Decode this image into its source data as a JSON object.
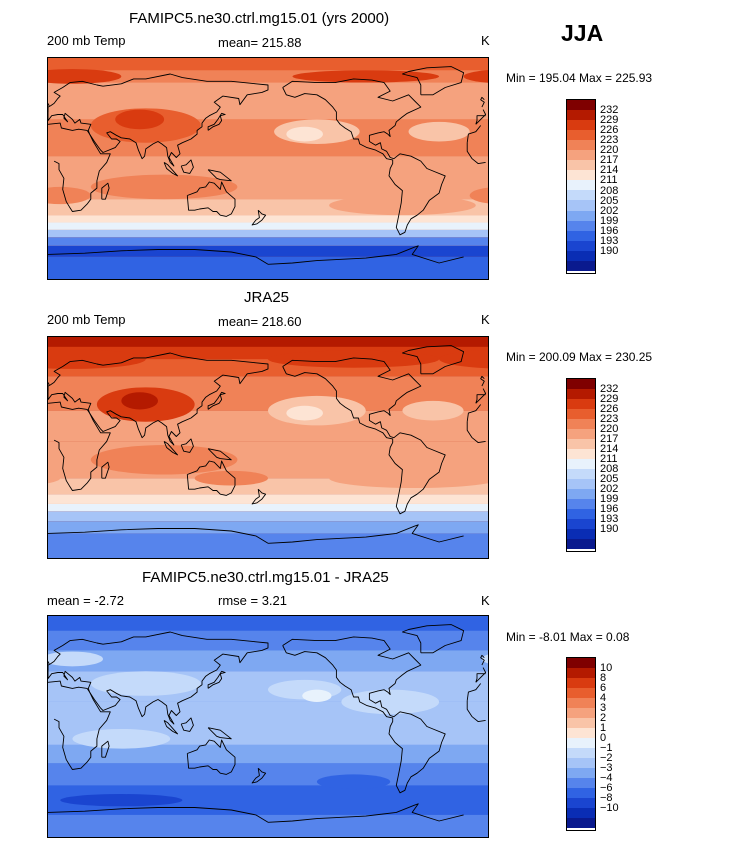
{
  "season": "JJA",
  "colors": {
    "warm": [
      "#7f0000",
      "#b41a00",
      "#d93b10",
      "#e85e2e",
      "#f08257",
      "#f5a27e",
      "#f9c4a8",
      "#fde4d4"
    ],
    "neutral": "#e8f2fc",
    "cool": [
      "#c4dafa",
      "#a6c4f7",
      "#7ea8f2",
      "#5684ec",
      "#3063e3",
      "#1a45d0",
      "#0a2db4",
      "#0a1a8e"
    ]
  },
  "panels": [
    {
      "title": "FAMIPC5.ne30.ctrl.mg15.01 (yrs 2000)",
      "left_label": "200 mb Temp",
      "mid_label": "mean=  215.88",
      "unit": "K",
      "minmax": "Min = 195.04 Max = 225.93",
      "colorbar_labels": [
        "232",
        "229",
        "226",
        "223",
        "220",
        "217",
        "214",
        "211",
        "208",
        "205",
        "202",
        "199",
        "196",
        "193",
        "190"
      ],
      "field": "model"
    },
    {
      "title": "JRA25",
      "left_label": "200 mb Temp",
      "mid_label": "mean=  218.60",
      "unit": "K",
      "minmax": "Min = 200.09 Max = 230.25",
      "colorbar_labels": [
        "232",
        "229",
        "226",
        "223",
        "220",
        "217",
        "214",
        "211",
        "208",
        "205",
        "202",
        "199",
        "196",
        "193",
        "190"
      ],
      "field": "obs"
    },
    {
      "title": "FAMIPC5.ne30.ctrl.mg15.01 - JRA25",
      "left_label": "mean =   -2.72",
      "mid_label": "rmse =    3.21",
      "unit": "K",
      "minmax": "Min =  -8.01 Max =   0.08",
      "colorbar_labels": [
        "10",
        "8",
        "6",
        "4",
        "3",
        "2",
        "1",
        "0",
        "−1",
        "−2",
        "−3",
        "−4",
        "−6",
        "−8",
        "−10"
      ],
      "field": "diff"
    }
  ]
}
